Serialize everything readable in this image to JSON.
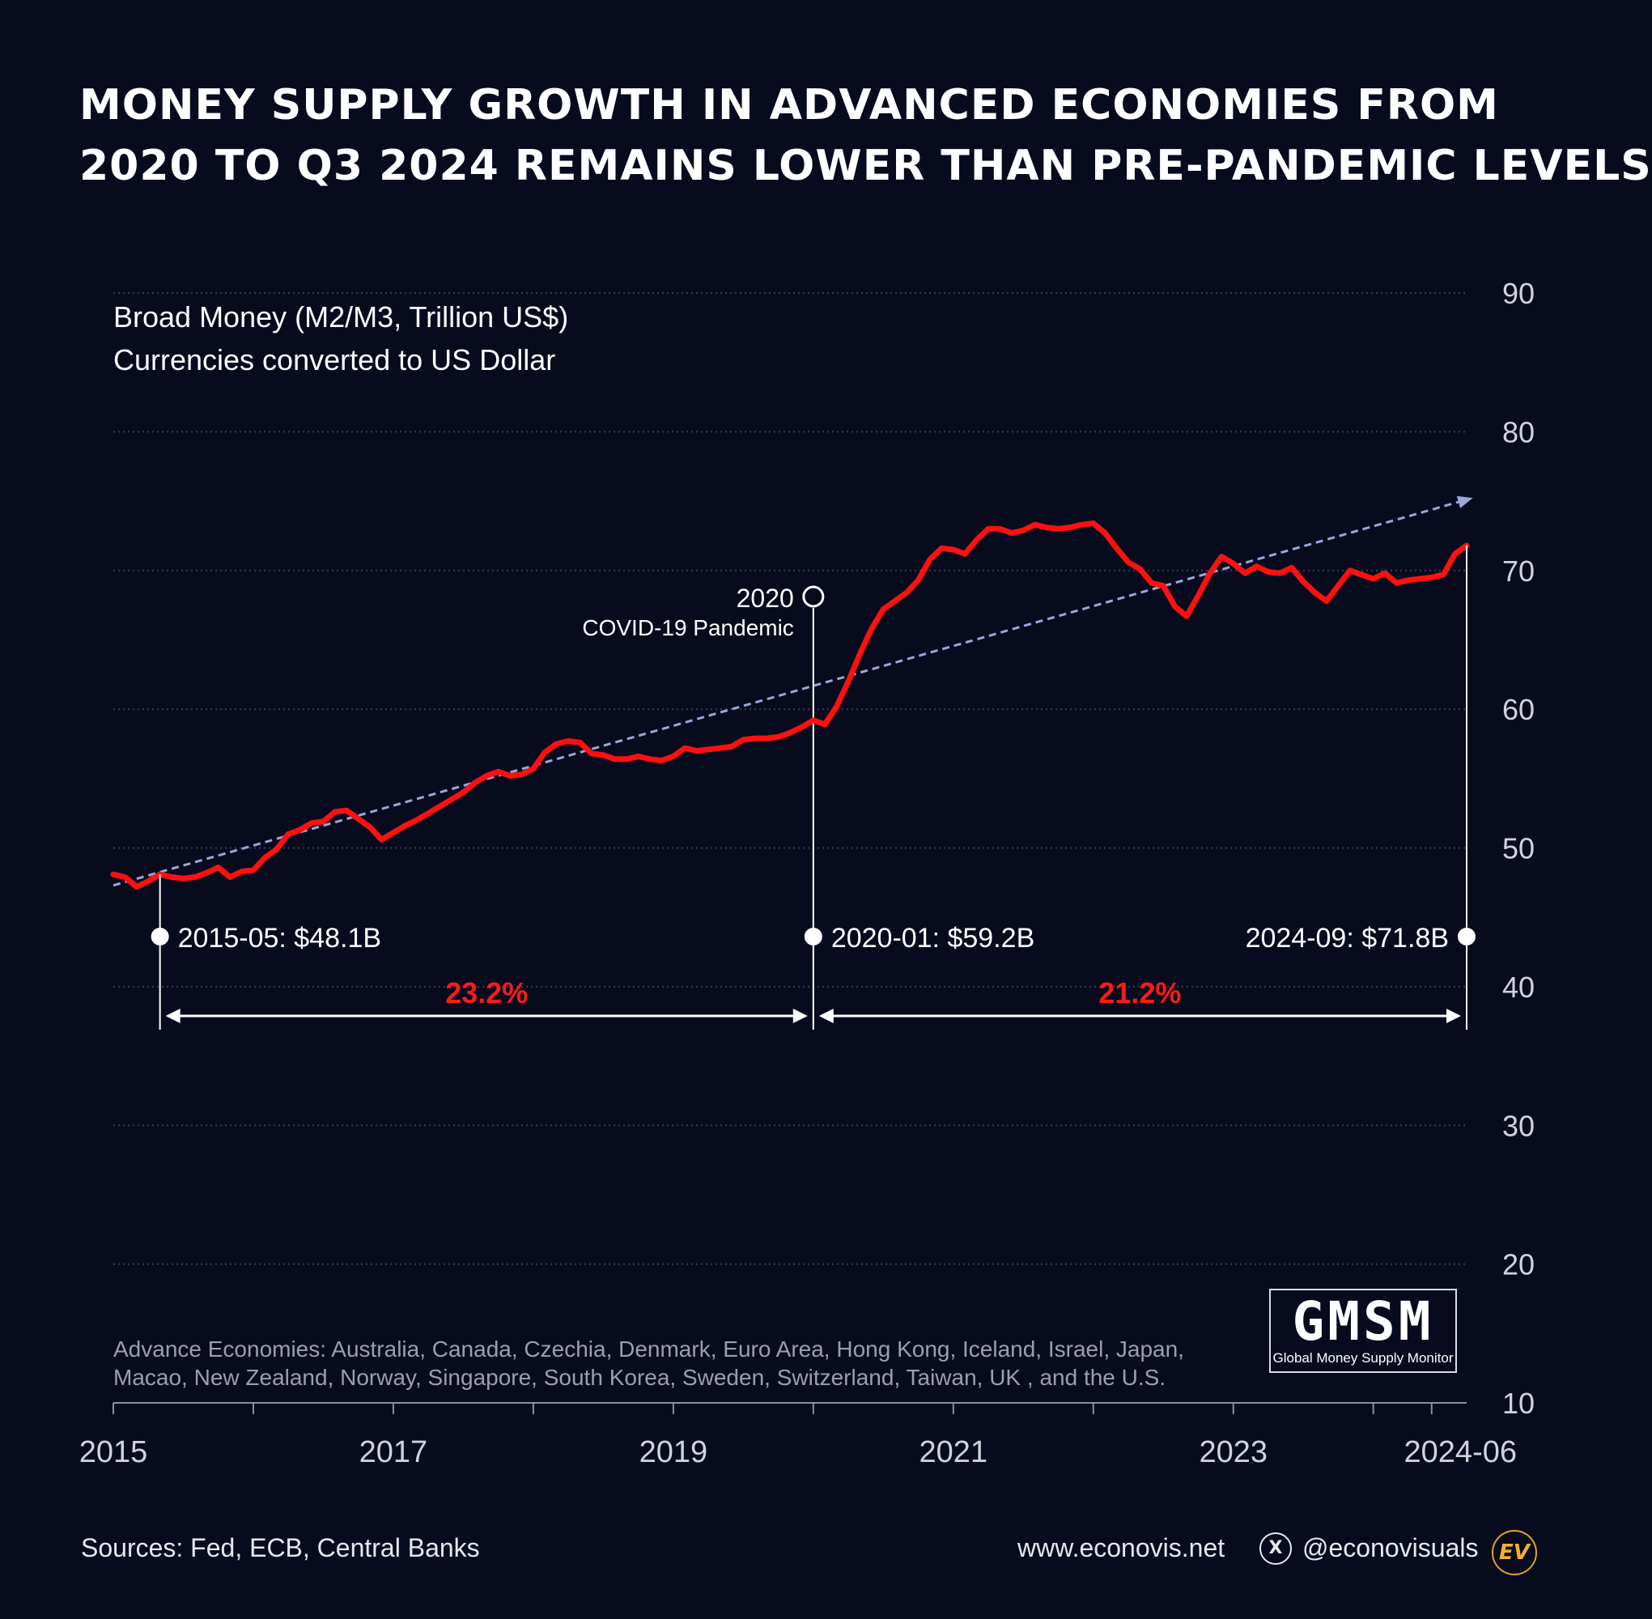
{
  "title_lines": [
    "MONEY SUPPLY GROWTH IN ADVANCED ECONOMIES FROM",
    "2020 TO Q3 2024 REMAINS LOWER THAN PRE-PANDEMIC LEVELS"
  ],
  "subtitle_lines": [
    "Broad Money (M2/M3, Trillion US$)",
    "Currencies converted to US Dollar"
  ],
  "note_lines": [
    "Advance Economies: Australia, Canada, Czechia, Denmark, Euro Area, Hong Kong, Iceland, Israel, Japan,",
    "Macao, New Zealand, Norway, Singapore, South Korea, Sweden, Switzerland, Taiwan, UK , and the U.S."
  ],
  "badge": {
    "title": "GMSM",
    "subtitle": "Global Money Supply Monitor"
  },
  "footer": {
    "sources": "Sources: Fed, ECB, Central Banks",
    "website": "www.econovis.net",
    "x_icon_glyph": "X",
    "handle": "@econovisuals",
    "logo_text": "EV"
  },
  "colors": {
    "background": "#070b1d",
    "series": "#ff1010",
    "trend": "#9aa6dc",
    "percent": "#ff1a1a",
    "grid": "#3a3f55",
    "text": "#ffffff",
    "axis_text": "#d0d3dc"
  },
  "chart_data": {
    "type": "line",
    "title": "MONEY SUPPLY GROWTH IN ADVANCED ECONOMIES FROM 2020 TO Q3 2024 REMAINS LOWER THAN PRE-PANDEMIC LEVELS",
    "ylabel": "Broad Money (M2/M3, Trillion US$)",
    "xlabel": "",
    "xlim": [
      "2015-01",
      "2024-09"
    ],
    "ylim": [
      10,
      90
    ],
    "y_ticks": [
      10,
      20,
      30,
      40,
      50,
      60,
      70,
      80,
      90
    ],
    "x_ticks": [
      "2015",
      "2017",
      "2019",
      "2021",
      "2023",
      "2024-06"
    ],
    "x_tick_dates": [
      "2015-01",
      "2017-01",
      "2019-01",
      "2021-01",
      "2023-01",
      "2024-06"
    ],
    "x_minor_tick_dates": [
      "2015-01",
      "2016-01",
      "2017-01",
      "2018-01",
      "2019-01",
      "2020-01",
      "2021-01",
      "2022-01",
      "2023-01",
      "2024-01",
      "2024-06"
    ],
    "grid": true,
    "series": [
      {
        "x": [
          "2015-01",
          "2015-02",
          "2015-03",
          "2015-04",
          "2015-05",
          "2015-06",
          "2015-07",
          "2015-08",
          "2015-09",
          "2015-10",
          "2015-11",
          "2015-12",
          "2016-01",
          "2016-02",
          "2016-03",
          "2016-04",
          "2016-05",
          "2016-06",
          "2016-07",
          "2016-08",
          "2016-09",
          "2016-10",
          "2016-11",
          "2016-12",
          "2017-01",
          "2017-02",
          "2017-03",
          "2017-04",
          "2017-05",
          "2017-06",
          "2017-07",
          "2017-08",
          "2017-09",
          "2017-10",
          "2017-11",
          "2017-12",
          "2018-01",
          "2018-02",
          "2018-03",
          "2018-04",
          "2018-05",
          "2018-06",
          "2018-07",
          "2018-08",
          "2018-09",
          "2018-10",
          "2018-11",
          "2018-12",
          "2019-01",
          "2019-02",
          "2019-03",
          "2019-04",
          "2019-05",
          "2019-06",
          "2019-07",
          "2019-08",
          "2019-09",
          "2019-10",
          "2019-11",
          "2019-12",
          "2020-01",
          "2020-02",
          "2020-03",
          "2020-04",
          "2020-05",
          "2020-06",
          "2020-07",
          "2020-08",
          "2020-09",
          "2020-10",
          "2020-11",
          "2020-12",
          "2021-01",
          "2021-02",
          "2021-03",
          "2021-04",
          "2021-05",
          "2021-06",
          "2021-07",
          "2021-08",
          "2021-09",
          "2021-10",
          "2021-11",
          "2021-12",
          "2022-01",
          "2022-02",
          "2022-03",
          "2022-04",
          "2022-05",
          "2022-06",
          "2022-07",
          "2022-08",
          "2022-09",
          "2022-10",
          "2022-11",
          "2022-12",
          "2023-01",
          "2023-02",
          "2023-03",
          "2023-04",
          "2023-05",
          "2023-06",
          "2023-07",
          "2023-08",
          "2023-09",
          "2023-10",
          "2023-11",
          "2023-12",
          "2024-01",
          "2024-02",
          "2024-03",
          "2024-04",
          "2024-05",
          "2024-06",
          "2024-07",
          "2024-08",
          "2024-09"
        ],
        "values": [
          48.1,
          47.9,
          47.2,
          47.6,
          48.1,
          47.9,
          47.8,
          47.9,
          48.2,
          48.6,
          47.9,
          48.3,
          48.4,
          49.3,
          49.9,
          51.0,
          51.3,
          51.8,
          51.9,
          52.6,
          52.7,
          52.1,
          51.5,
          50.6,
          51.1,
          51.6,
          52.0,
          52.5,
          53.0,
          53.5,
          54.0,
          54.7,
          55.2,
          55.5,
          55.2,
          55.3,
          55.7,
          56.9,
          57.5,
          57.7,
          57.6,
          56.8,
          56.7,
          56.4,
          56.4,
          56.6,
          56.4,
          56.3,
          56.6,
          57.2,
          57.0,
          57.1,
          57.2,
          57.3,
          57.8,
          57.9,
          57.9,
          58.0,
          58.3,
          58.7,
          59.2,
          58.9,
          60.2,
          62.0,
          64.0,
          65.8,
          67.2,
          67.8,
          68.4,
          69.3,
          70.8,
          71.6,
          71.5,
          71.2,
          72.2,
          73.0,
          73.0,
          72.7,
          72.9,
          73.3,
          73.1,
          73.0,
          73.1,
          73.3,
          73.4,
          72.7,
          71.6,
          70.6,
          70.1,
          69.1,
          68.9,
          67.4,
          66.7,
          68.2,
          69.8,
          71.0,
          70.5,
          69.8,
          70.3,
          69.9,
          69.8,
          70.2,
          69.2,
          68.4,
          67.8,
          68.9,
          70.0,
          69.7,
          69.4,
          69.8,
          69.1,
          69.3,
          69.4,
          69.5,
          69.7,
          71.2,
          71.8
        ]
      }
    ],
    "trendline": {
      "x": [
        "2015-01",
        "2024-09"
      ],
      "y": [
        47.3,
        75.1
      ]
    },
    "event": {
      "date": "2020-01",
      "year_label": "2020",
      "label": "COVID-19 Pandemic"
    },
    "annotations": [
      {
        "date": "2015-05",
        "value": 48.1,
        "label": "2015-05: $48.1B"
      },
      {
        "date": "2020-01",
        "value": 59.2,
        "label": "2020-01: $59.2B"
      },
      {
        "date": "2024-09",
        "value": 71.8,
        "label": "2024-09: $71.8B"
      }
    ],
    "growth_spans": [
      {
        "from": "2015-05",
        "to": "2020-01",
        "label": "23.2%"
      },
      {
        "from": "2020-01",
        "to": "2024-09",
        "label": "21.2%"
      }
    ]
  }
}
